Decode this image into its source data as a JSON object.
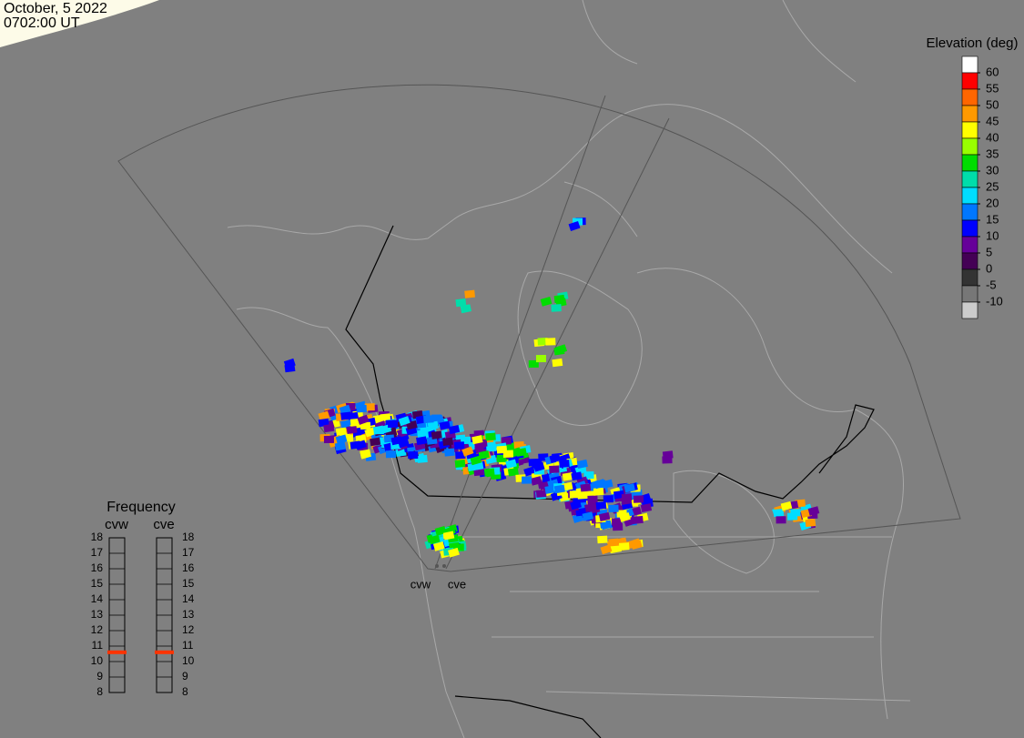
{
  "header": {
    "date": "October, 5 2022",
    "time": "0702:00 UT"
  },
  "colorbar": {
    "title": "Elevation (deg)",
    "colors": [
      "#ffffff",
      "#ff0000",
      "#ff6600",
      "#ff9900",
      "#ffff00",
      "#99ff00",
      "#00dd00",
      "#00ddaa",
      "#00ddff",
      "#0077ff",
      "#0000ff",
      "#660099",
      "#440055",
      "#333333",
      "#777777",
      "#cccccc"
    ],
    "lim": [
      -15,
      65
    ],
    "ticks": [
      60,
      55,
      50,
      45,
      40,
      35,
      30,
      25,
      20,
      15,
      10,
      5,
      0,
      -5,
      -10
    ]
  },
  "frequency": {
    "title": "Frequency",
    "radars": [
      "cvw",
      "cve"
    ],
    "lim": [
      8,
      18
    ],
    "ticks": [
      18,
      17,
      16,
      15,
      14,
      13,
      12,
      11,
      10,
      9,
      8
    ],
    "values": [
      10.6,
      10.6
    ],
    "marker_color": "#ff3300"
  },
  "sites": [
    "cvw",
    "cve"
  ]
}
